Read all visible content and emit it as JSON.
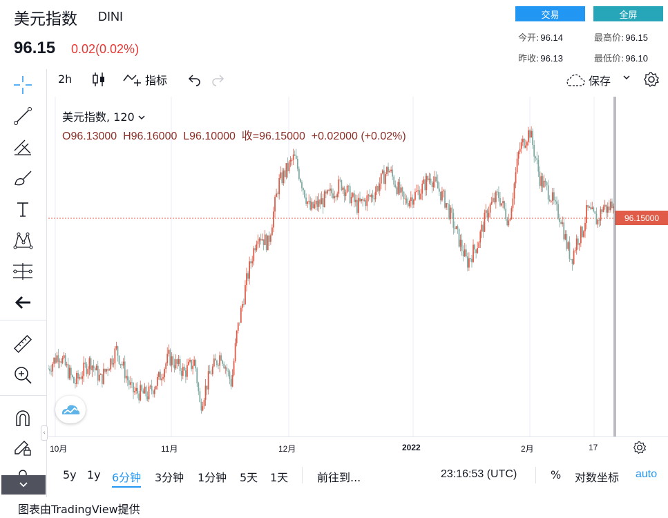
{
  "header": {
    "title": "美元指数",
    "symbol": "DINI",
    "price": "96.15",
    "change": "0.02(0.02%)",
    "trade_label": "交易",
    "fullscreen_label": "全屏",
    "colors": {
      "trade": "#2196f3",
      "fullscreen": "#26a6b8",
      "down": "#e53935"
    }
  },
  "stats": {
    "open_label": "今开:",
    "open": "96.14",
    "high_label": "最高价:",
    "high": "96.15",
    "prevclose_label": "昨收:",
    "prevclose": "96.13",
    "low_label": "最低价:",
    "low": "96.10"
  },
  "toolbar": {
    "interval": "2h",
    "indicators_label": "指标",
    "save_label": "保存"
  },
  "left_tools": [
    "crosshair-icon",
    "trend-line-icon",
    "fib-icon",
    "brush-icon",
    "text-icon",
    "pattern-icon",
    "measure-icon",
    "back-arrow-icon",
    "ruler-icon",
    "zoom-in-icon",
    "magnet-icon",
    "lock-draw-icon",
    "lock-icon"
  ],
  "legend": {
    "name": "美元指数, 120",
    "ohlc": "O96.13000  H96.16000  L96.10000  收=96.15000  +0.02000 (+0.02%)"
  },
  "chart_data": {
    "type": "candlestick",
    "current_price_label": "96.15000",
    "x_tick_labels": [
      "10月",
      "11月",
      "12月",
      "2022",
      "2月",
      "17"
    ],
    "x_tick_bold": [
      false,
      false,
      false,
      true,
      false,
      false
    ],
    "up_color": "#e05c48",
    "down_color": "#7fa8a0",
    "close_path": [
      [
        0,
        93.9
      ],
      [
        2,
        94.1
      ],
      [
        5,
        93.7
      ],
      [
        8,
        94.0
      ],
      [
        10,
        93.75
      ],
      [
        13,
        94.15
      ],
      [
        16,
        93.6
      ],
      [
        19,
        93.55
      ],
      [
        21,
        93.75
      ],
      [
        23,
        94.05
      ],
      [
        26,
        93.85
      ],
      [
        28,
        94.0
      ],
      [
        29,
        93.4
      ],
      [
        31,
        93.85
      ],
      [
        33,
        94.1
      ],
      [
        35,
        93.7
      ],
      [
        36,
        94.35
      ],
      [
        38,
        95.1
      ],
      [
        40,
        95.7
      ],
      [
        42,
        95.55
      ],
      [
        44,
        96.35
      ],
      [
        47,
        96.7
      ],
      [
        50,
        96.0
      ],
      [
        53,
        96.15
      ],
      [
        56,
        96.35
      ],
      [
        59,
        96.05
      ],
      [
        62,
        96.2
      ],
      [
        65,
        96.55
      ],
      [
        68,
        96.1
      ],
      [
        71,
        96.25
      ],
      [
        73,
        96.45
      ],
      [
        76,
        96.1
      ],
      [
        78,
        95.7
      ],
      [
        80,
        95.3
      ],
      [
        82,
        95.55
      ],
      [
        84,
        96.0
      ],
      [
        86,
        96.2
      ],
      [
        88,
        95.85
      ],
      [
        90,
        96.8
      ],
      [
        92,
        97.05
      ],
      [
        94,
        96.4
      ],
      [
        96,
        96.2
      ],
      [
        97,
        96.0
      ],
      [
        98,
        95.9
      ],
      [
        99,
        95.55
      ],
      [
        100,
        95.35
      ],
      [
        101,
        95.6
      ],
      [
        102,
        95.7
      ],
      [
        103,
        96.0
      ],
      [
        105,
        95.85
      ],
      [
        106,
        96.05
      ],
      [
        107,
        96.0
      ],
      [
        108,
        96.15
      ]
    ],
    "y_range": [
      93.0,
      97.5
    ],
    "x_range": [
      0,
      108
    ],
    "grid": true
  },
  "bottom": {
    "ranges": [
      "5y",
      "1y",
      "6分钟",
      "3分钟",
      "1分钟",
      "5天",
      "1天"
    ],
    "active_range": "6分钟",
    "goto_label": "前往到...",
    "time": "23:16:53 (UTC)",
    "percent": "%",
    "log_label": "对数坐标",
    "auto_label": "auto",
    "accent": "#2196f3"
  },
  "footer": "图表由TradingView提供"
}
